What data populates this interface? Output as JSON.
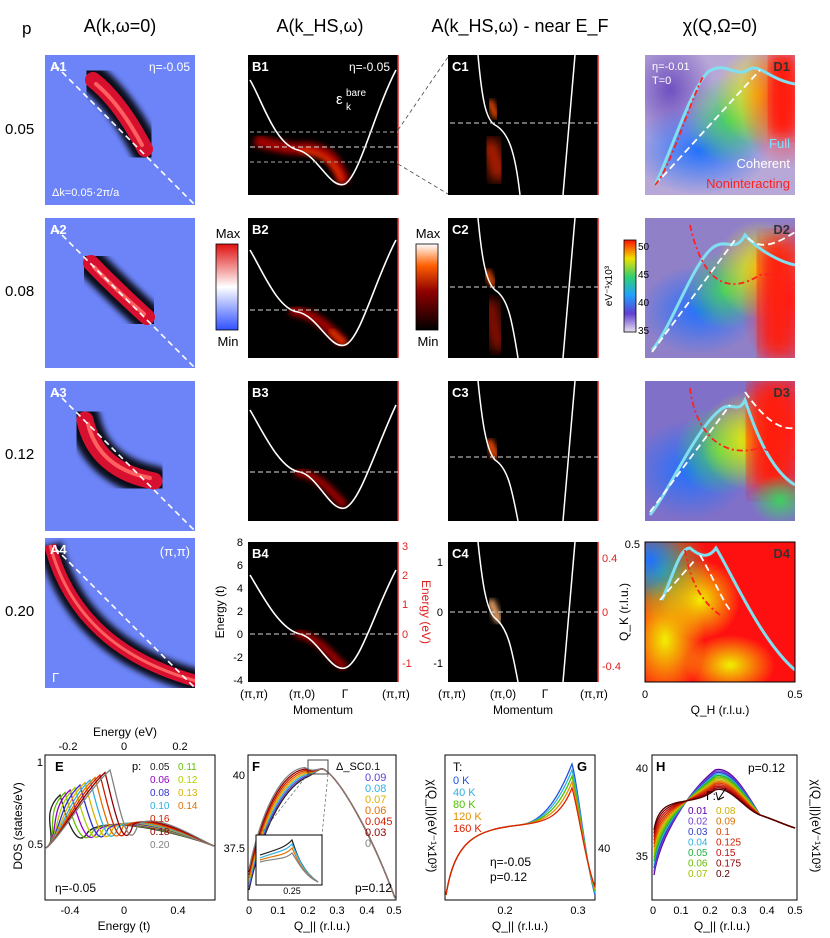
{
  "header": {
    "p": "p",
    "colA": "A(k,ω=0)",
    "colB": "A(k_HS,ω)",
    "colC": "A(k_HS,ω) - near E_F",
    "colD": "χ(Q,Ω=0)"
  },
  "doping_rows": [
    "0.05",
    "0.08",
    "0.12",
    "0.20"
  ],
  "panelA": {
    "labels": [
      "A1",
      "A2",
      "A3",
      "A4"
    ],
    "eta": "η=-0.05",
    "dk": "Δk=0.05·2π/a",
    "pipi": "(π,π)",
    "gamma": "Γ"
  },
  "cbarA": {
    "max": "Max",
    "min": "Min"
  },
  "panelB": {
    "labels": [
      "B1",
      "B2",
      "B3",
      "B4"
    ],
    "eta": "η=-0.05",
    "ebare": "ε",
    "ebare_sup": "bare",
    "ebare_sub": "k",
    "ylabel": "Energy (t)",
    "ylabel_right": "Energy (eV)",
    "yticks": [
      "8",
      "6",
      "4",
      "2",
      "0",
      "-2",
      "-4"
    ],
    "yticks_right": [
      "3",
      "2",
      "1",
      "0",
      "-1"
    ],
    "xticks": [
      "(π,π)",
      "(π,0)",
      "Γ",
      "(π,π)"
    ],
    "xlabel": "Momentum"
  },
  "cbarB": {
    "max": "Max",
    "min": "Min"
  },
  "panelC": {
    "labels": [
      "C1",
      "C2",
      "C3",
      "C4"
    ],
    "yticks": [
      "1",
      "0",
      "-1"
    ],
    "yticks_right": [
      "0.4",
      "0",
      "-0.4"
    ],
    "xticks": [
      "(π,π)",
      "(π,0)",
      "Γ",
      "(π,π)"
    ],
    "xlabel": "Momentum"
  },
  "panelD": {
    "labels": [
      "D1",
      "D2",
      "D3",
      "D4"
    ],
    "eta": "η=-0.01",
    "temp": "T=0",
    "legend": [
      {
        "label": "Full",
        "color": "#7fdfff"
      },
      {
        "label": "Coherent",
        "color": "#ffffff"
      },
      {
        "label": "Noninteracting",
        "color": "#ff2020"
      }
    ],
    "cbar_ticks": [
      "50",
      "45",
      "40",
      "35"
    ],
    "cbar_label": "eV⁻¹x10³",
    "ylabel": "Q_K (r.l.u.)",
    "xlabel": "Q_H (r.l.u.)",
    "xticks": [
      "0",
      "0.5"
    ],
    "yticks": [
      "0.5",
      "0"
    ]
  },
  "panelE": {
    "label": "E",
    "top_axis": "Energy (eV)",
    "top_ticks": [
      "-0.2",
      "0",
      "0.2"
    ],
    "ylabel": "DOS (states/eV)",
    "yticks": [
      "1",
      "0.5"
    ],
    "xlabel": "Energy (t)",
    "xticks": [
      "-0.4",
      "0",
      "0.4"
    ],
    "eta": "η=-0.05",
    "legend_title": "p:",
    "legend": [
      {
        "label": "0.05",
        "color": "#202020"
      },
      {
        "label": "0.11",
        "color": "#60c000"
      },
      {
        "label": "0.06",
        "color": "#9000c0"
      },
      {
        "label": "0.12",
        "color": "#b0d000"
      },
      {
        "label": "0.08",
        "color": "#3030d0"
      },
      {
        "label": "0.13",
        "color": "#e0b000"
      },
      {
        "label": "0.10",
        "color": "#30b0e0"
      },
      {
        "label": "0.14",
        "color": "#e07000"
      },
      {
        "label": "0.16",
        "color": "#d02000"
      },
      {
        "label": "0.18",
        "color": "#900000"
      },
      {
        "label": "0.20",
        "color": "#808080"
      }
    ]
  },
  "panelF": {
    "label": "F",
    "yticks": [
      "40",
      "37.5"
    ],
    "xticks": [
      "0",
      "0.1",
      "0.2",
      "0.3",
      "0.4",
      "0.5"
    ],
    "xlabel": "Q_|| (r.l.u.)",
    "legend_title": "Δ_SC:",
    "legend": [
      {
        "label": "0.1",
        "color": "#202020"
      },
      {
        "label": "0.09",
        "color": "#6040d0"
      },
      {
        "label": "0.08",
        "color": "#30b0e0"
      },
      {
        "label": "0.07",
        "color": "#e0b000"
      },
      {
        "label": "0.06",
        "color": "#e07000"
      },
      {
        "label": "0.045",
        "color": "#d02000"
      },
      {
        "label": "0.03",
        "color": "#900000"
      },
      {
        "label": "0",
        "color": "#808080"
      }
    ],
    "inset_tick": "0.25",
    "note": "p=0.12"
  },
  "panelG": {
    "label": "G",
    "right_ylabel": "χ(Q_||)(eV⁻¹x10³)",
    "yticks": [
      "40"
    ],
    "xticks": [
      "0.2",
      "0.3"
    ],
    "xlabel": "Q_|| (r.l.u.)",
    "legend_title": "T:",
    "legend": [
      {
        "label": "0 K",
        "color": "#2050e0"
      },
      {
        "label": "40 K",
        "color": "#30b0e0"
      },
      {
        "label": "80 K",
        "color": "#50c000"
      },
      {
        "label": "120 K",
        "color": "#e09000"
      },
      {
        "label": "160 K",
        "color": "#e02000"
      }
    ],
    "eta": "η=-0.05",
    "p": "p=0.12"
  },
  "panelH": {
    "label": "H",
    "right_ylabel": "χ(Q_||)(eV⁻¹x10³)",
    "yticks": [
      "40",
      "35"
    ],
    "xticks": [
      "0",
      "0.1",
      "0.2",
      "0.3",
      "0.4",
      "0.5"
    ],
    "xlabel": "Q_|| (r.l.u.)",
    "p": "p=0.12",
    "legend_title": "Γ:",
    "legend": [
      {
        "label": "0.01",
        "color": "#6000a0"
      },
      {
        "label": "0.08",
        "color": "#d0b000"
      },
      {
        "label": "0.02",
        "color": "#7040d0"
      },
      {
        "label": "0.09",
        "color": "#e07000"
      },
      {
        "label": "0.03",
        "color": "#3040d0"
      },
      {
        "label": "0.1",
        "color": "#e04000"
      },
      {
        "label": "0.04",
        "color": "#30b0e0"
      },
      {
        "label": "0.125",
        "color": "#d02000"
      },
      {
        "label": "0.05",
        "color": "#20b040"
      },
      {
        "label": "0.15",
        "color": "#c01010"
      },
      {
        "label": "0.06",
        "color": "#60c000"
      },
      {
        "label": "0.175",
        "color": "#900000"
      },
      {
        "label": "0.07",
        "color": "#a0c000"
      },
      {
        "label": "0.2",
        "color": "#500000"
      }
    ]
  }
}
